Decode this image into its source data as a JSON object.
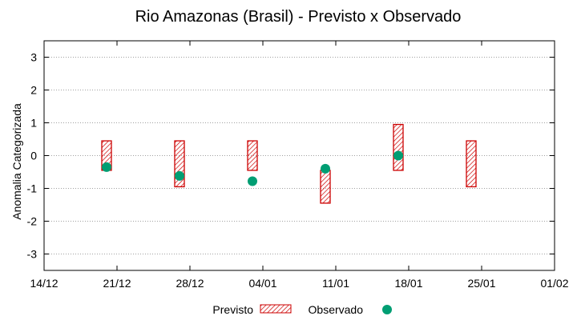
{
  "chart_data": {
    "type": "range-bar-with-points",
    "title": "Rio Amazonas (Brasil) - Previsto x Observado",
    "xlabel": "",
    "ylabel": "Anomalia Categorizada",
    "ylim": [
      -3.5,
      3.5
    ],
    "yticks": [
      -3,
      -2,
      -1,
      0,
      1,
      2,
      3
    ],
    "grid": true,
    "x_day_range": [
      0,
      49
    ],
    "xticks": [
      {
        "day": 0,
        "label": "14/12"
      },
      {
        "day": 7,
        "label": "21/12"
      },
      {
        "day": 14,
        "label": "28/12"
      },
      {
        "day": 21,
        "label": "04/01"
      },
      {
        "day": 28,
        "label": "11/01"
      },
      {
        "day": 35,
        "label": "18/01"
      },
      {
        "day": 42,
        "label": "25/01"
      },
      {
        "day": 49,
        "label": "01/02"
      }
    ],
    "series": [
      {
        "name": "Previsto",
        "kind": "range-bar",
        "color": "#cc0000",
        "points": [
          {
            "day": 6,
            "low": -0.45,
            "high": 0.45
          },
          {
            "day": 13,
            "low": -0.95,
            "high": 0.45
          },
          {
            "day": 20,
            "low": -0.45,
            "high": 0.45
          },
          {
            "day": 27,
            "low": -1.45,
            "high": -0.45
          },
          {
            "day": 34,
            "low": -0.45,
            "high": 0.95
          },
          {
            "day": 41,
            "low": -0.95,
            "high": 0.45
          }
        ]
      },
      {
        "name": "Observado",
        "kind": "point",
        "color": "#009e73",
        "points": [
          {
            "day": 6,
            "value": -0.35
          },
          {
            "day": 13,
            "value": -0.62
          },
          {
            "day": 20,
            "value": -0.78
          },
          {
            "day": 27,
            "value": -0.4
          },
          {
            "day": 34,
            "value": 0.0
          }
        ]
      }
    ],
    "legend_position": "bottom"
  }
}
